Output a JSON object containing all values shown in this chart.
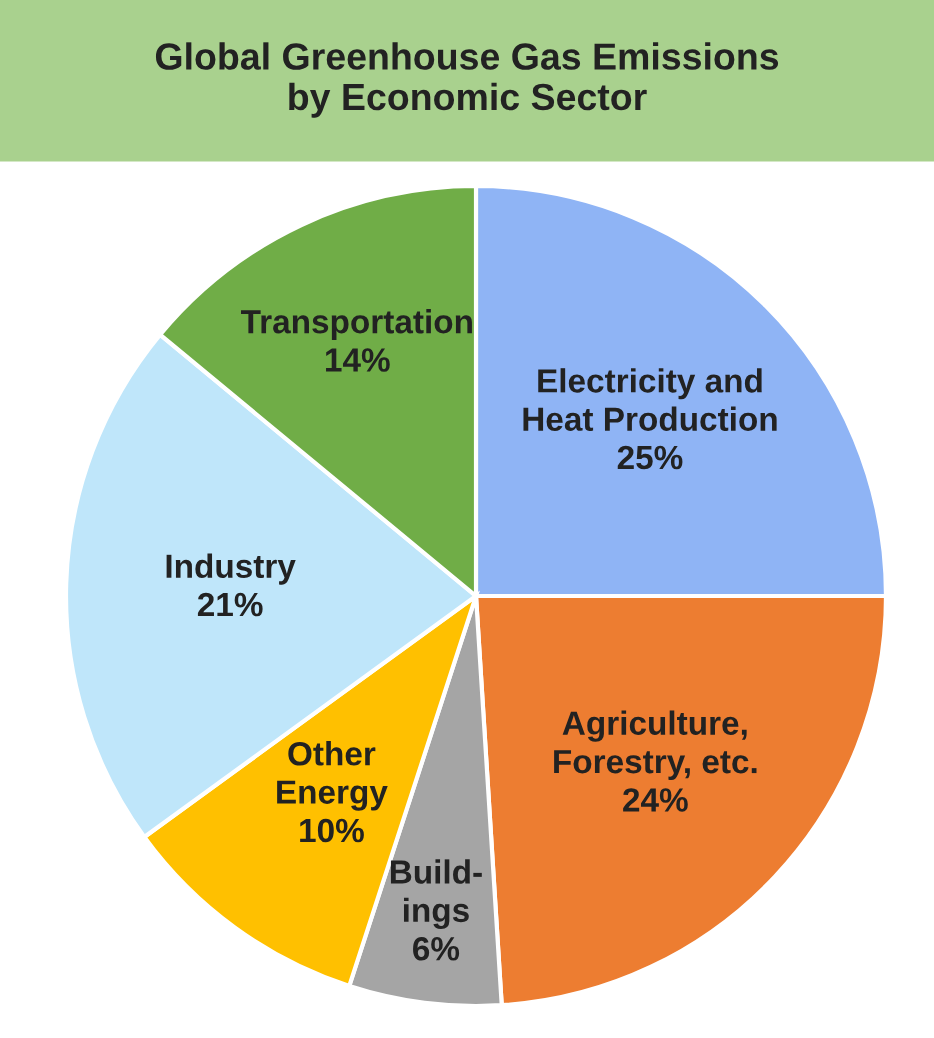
{
  "chart_data": {
    "type": "pie",
    "title": "Global Greenhouse Gas Emissions\nby Economic Sector",
    "categories": [
      "Electricity and\nHeat Production",
      "Agriculture,\nForestry, etc.",
      "Build-\nings",
      "Other\nEnergy",
      "Industry",
      "Transportation"
    ],
    "values": [
      25,
      24,
      6,
      10,
      21,
      14
    ],
    "colors": [
      "#8fb4f5",
      "#ed7d31",
      "#a5a5a5",
      "#ffc000",
      "#bfe6fa",
      "#70ad47"
    ],
    "value_labels": [
      "25%",
      "24%",
      "6%",
      "10%",
      "21%",
      "14%"
    ],
    "legend": false
  }
}
